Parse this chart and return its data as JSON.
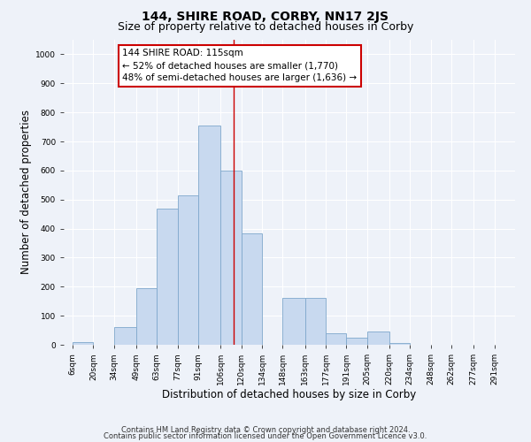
{
  "title": "144, SHIRE ROAD, CORBY, NN17 2JS",
  "subtitle": "Size of property relative to detached houses in Corby",
  "xlabel": "Distribution of detached houses by size in Corby",
  "ylabel": "Number of detached properties",
  "bar_labels": [
    "6sqm",
    "20sqm",
    "34sqm",
    "49sqm",
    "63sqm",
    "77sqm",
    "91sqm",
    "106sqm",
    "120sqm",
    "134sqm",
    "148sqm",
    "163sqm",
    "177sqm",
    "191sqm",
    "205sqm",
    "220sqm",
    "234sqm",
    "248sqm",
    "262sqm",
    "277sqm",
    "291sqm"
  ],
  "bar_values": [
    10,
    0,
    60,
    195,
    470,
    515,
    755,
    600,
    385,
    0,
    160,
    160,
    40,
    25,
    45,
    5,
    0,
    0,
    0,
    0,
    0
  ],
  "bar_left_edges": [
    6,
    20,
    34,
    49,
    63,
    77,
    91,
    106,
    120,
    134,
    148,
    163,
    177,
    191,
    205,
    220,
    234,
    248,
    262,
    277,
    291
  ],
  "bar_widths": [
    14,
    14,
    15,
    14,
    14,
    14,
    15,
    14,
    14,
    14,
    15,
    14,
    14,
    14,
    15,
    14,
    14,
    14,
    15,
    14,
    14
  ],
  "bar_color": "#c8d9ef",
  "bar_edge_color": "#7fa8cc",
  "reference_line_x": 115,
  "reference_line_color": "#cc0000",
  "annotation_text_line1": "144 SHIRE ROAD: 115sqm",
  "annotation_text_line2": "← 52% of detached houses are smaller (1,770)",
  "annotation_text_line3": "48% of semi-detached houses are larger (1,636) →",
  "ylim": [
    0,
    1050
  ],
  "yticks": [
    0,
    100,
    200,
    300,
    400,
    500,
    600,
    700,
    800,
    900,
    1000
  ],
  "xlim_min": 0,
  "xlim_max": 305,
  "footer_line1": "Contains HM Land Registry data © Crown copyright and database right 2024.",
  "footer_line2": "Contains public sector information licensed under the Open Government Licence v3.0.",
  "background_color": "#eef2f9",
  "grid_color": "#ffffff",
  "title_fontsize": 10,
  "subtitle_fontsize": 9,
  "axis_label_fontsize": 8.5,
  "tick_fontsize": 6.5,
  "annotation_fontsize": 7.5,
  "footer_fontsize": 6
}
